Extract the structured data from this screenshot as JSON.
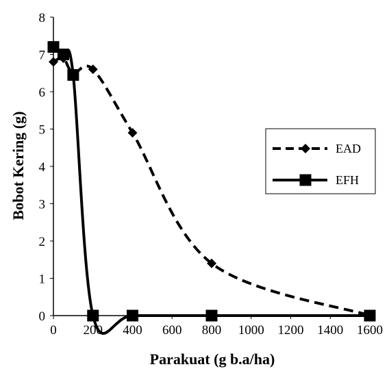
{
  "chart_data": {
    "type": "line",
    "xlabel": "Parakuat (g b.a/ha)",
    "ylabel": "Bobot Kering (g)",
    "x": [
      0,
      50,
      100,
      200,
      400,
      800,
      1600
    ],
    "xticks": [
      0,
      200,
      400,
      600,
      800,
      1000,
      1200,
      1400,
      1600
    ],
    "yticks": [
      0,
      1,
      2,
      3,
      4,
      5,
      6,
      7,
      8
    ],
    "xlim": [
      0,
      1600
    ],
    "ylim": [
      0,
      8
    ],
    "grid": false,
    "legend_position": "right",
    "series": [
      {
        "name": "EAD",
        "line_style": "dashed",
        "marker": "diamond",
        "color": "#000000",
        "values": [
          6.8,
          6.9,
          6.5,
          6.6,
          4.9,
          1.4,
          0.0
        ]
      },
      {
        "name": "EFH",
        "line_style": "solid",
        "marker": "square",
        "color": "#000000",
        "values": [
          7.2,
          7.0,
          6.45,
          0.0,
          0.0,
          0.0,
          0.0
        ]
      }
    ]
  }
}
